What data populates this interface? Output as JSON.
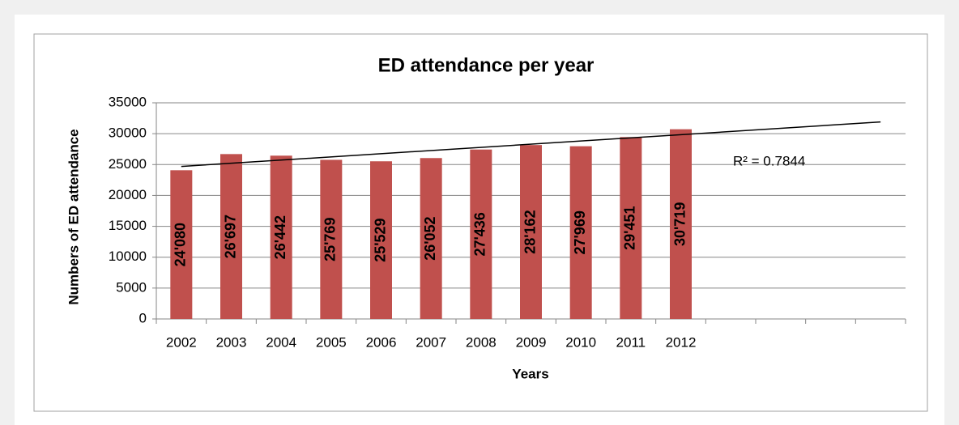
{
  "chart_data": {
    "type": "bar",
    "title": "ED attendance per year",
    "xlabel": "Years",
    "ylabel": "Numbers of ED attendance",
    "categories": [
      "2002",
      "2003",
      "2004",
      "2005",
      "2006",
      "2007",
      "2008",
      "2009",
      "2010",
      "2011",
      "2012",
      null,
      null,
      null,
      null
    ],
    "values": [
      24080,
      26697,
      26442,
      25769,
      25529,
      26052,
      27436,
      28162,
      27969,
      29451,
      30719,
      null,
      null,
      null,
      null
    ],
    "value_labels": [
      "24'080",
      "26'697",
      "26'442",
      "25'769",
      "25'529",
      "26'052",
      "27'436",
      "28'162",
      "27'969",
      "29'451",
      "30'719",
      null,
      null,
      null,
      null
    ],
    "color": "#c0504d",
    "ylim": [
      0,
      35000
    ],
    "yticks": [
      0,
      5000,
      10000,
      15000,
      20000,
      25000,
      30000,
      35000
    ],
    "grid": true,
    "trendline": {
      "start": 24700,
      "end": 31900,
      "color": "#000000",
      "label": "R² = 0.7844"
    }
  }
}
